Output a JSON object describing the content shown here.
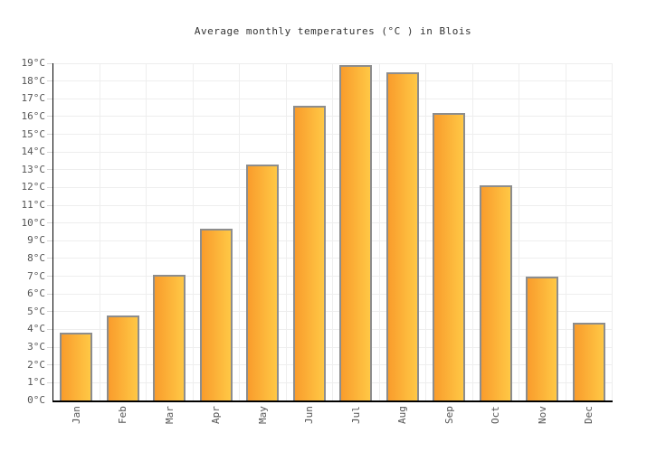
{
  "chart_data": {
    "type": "bar",
    "title": "Average monthly temperatures (°C ) in Blois",
    "categories": [
      "Jan",
      "Feb",
      "Mar",
      "Apr",
      "May",
      "Jun",
      "Jul",
      "Aug",
      "Sep",
      "Oct",
      "Nov",
      "Dec"
    ],
    "values": [
      3.8,
      4.8,
      7.1,
      9.7,
      13.3,
      16.6,
      18.9,
      18.5,
      16.2,
      12.1,
      7.0,
      4.4
    ],
    "series_name": "Average monthly temperature",
    "xlabel": "",
    "ylabel": "",
    "ylabel_format": "{value}°C",
    "ylim": [
      0,
      19
    ],
    "ytick_step": 1,
    "grid": true,
    "legend_position": "none",
    "colors": {
      "bar_gradient_start": "#F99C2C",
      "bar_gradient_end": "#FFC845",
      "bar_border": "#8D8D8D",
      "gridline": "#EEEEEE",
      "axis_line": "#000000",
      "tick": "#D6D6D6",
      "axis_label": "#555555",
      "title": "#333333"
    }
  }
}
